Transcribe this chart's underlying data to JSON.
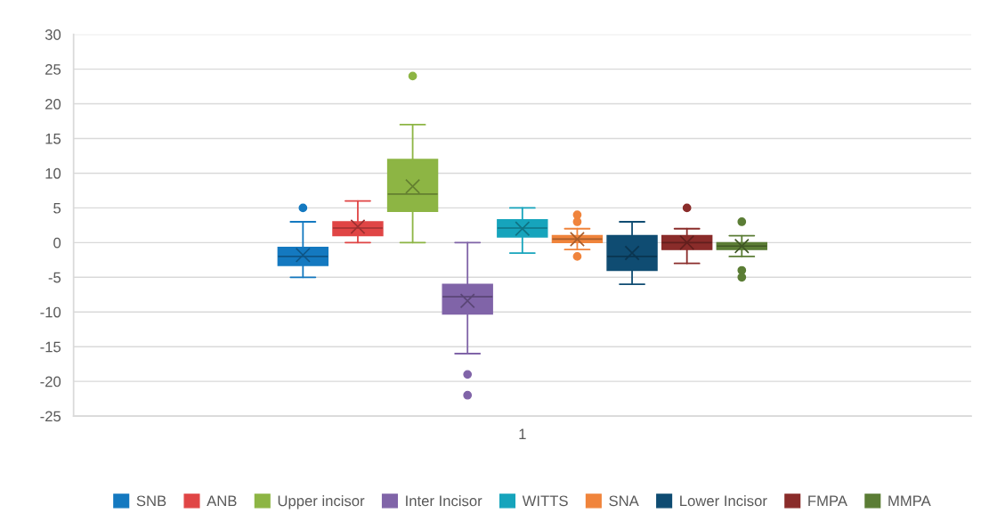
{
  "chart_data": {
    "type": "box",
    "categories": [
      "1"
    ],
    "ylim": [
      -25,
      30
    ],
    "yticks": [
      -25,
      -20,
      -15,
      -10,
      -5,
      0,
      5,
      10,
      15,
      20,
      25,
      30
    ],
    "grid": "y",
    "legend": "bottom",
    "marker": "cross",
    "series": [
      {
        "name": "SNB",
        "color": "#1479c0",
        "boxes": [
          {
            "low": -5,
            "q1": -3.3,
            "median": -2,
            "q3": -0.7,
            "high": 3,
            "mean": -1.8,
            "outliers": [
              5
            ]
          }
        ]
      },
      {
        "name": "ANB",
        "color": "#e04545",
        "boxes": [
          {
            "low": 0,
            "q1": 1,
            "median": 2.1,
            "q3": 3,
            "high": 6,
            "mean": 2.3
          }
        ]
      },
      {
        "name": "Upper incisor",
        "color": "#8db544",
        "boxes": [
          {
            "low": 0,
            "q1": 4.5,
            "median": 7,
            "q3": 12,
            "high": 17,
            "mean": 8.1,
            "outliers": [
              24
            ]
          }
        ]
      },
      {
        "name": "Inter Incisor",
        "color": "#8064a8",
        "boxes": [
          {
            "low": -16,
            "q1": -10.3,
            "median": -7.8,
            "q3": -6,
            "high": 0,
            "mean": -8.4,
            "outliers": [
              -19,
              -22
            ]
          }
        ]
      },
      {
        "name": "WITTS",
        "color": "#16a4bc",
        "boxes": [
          {
            "low": -1.5,
            "q1": 0.8,
            "median": 2.1,
            "q3": 3.3,
            "high": 5,
            "mean": 2
          }
        ]
      },
      {
        "name": "SNA",
        "color": "#f0843c",
        "boxes": [
          {
            "low": -1,
            "q1": 0,
            "median": 0.5,
            "q3": 1,
            "high": 2,
            "mean": 0.5,
            "outliers": [
              4,
              3,
              -2
            ]
          }
        ]
      },
      {
        "name": "Lower Incisor",
        "color": "#0f4c72",
        "boxes": [
          {
            "low": -6,
            "q1": -4,
            "median": -2,
            "q3": 1,
            "high": 3,
            "mean": -1.5
          }
        ]
      },
      {
        "name": "FMPA",
        "color": "#8a2c2a",
        "boxes": [
          {
            "low": -3,
            "q1": -1,
            "median": 0,
            "q3": 1,
            "high": 2,
            "mean": 0,
            "outliers": [
              5
            ]
          }
        ]
      },
      {
        "name": "MMPA",
        "color": "#5b7d35",
        "boxes": [
          {
            "low": -2,
            "q1": -1,
            "median": -0.5,
            "q3": 0,
            "high": 1,
            "mean": -0.5,
            "outliers": [
              3,
              -4,
              -5
            ]
          }
        ]
      }
    ]
  }
}
